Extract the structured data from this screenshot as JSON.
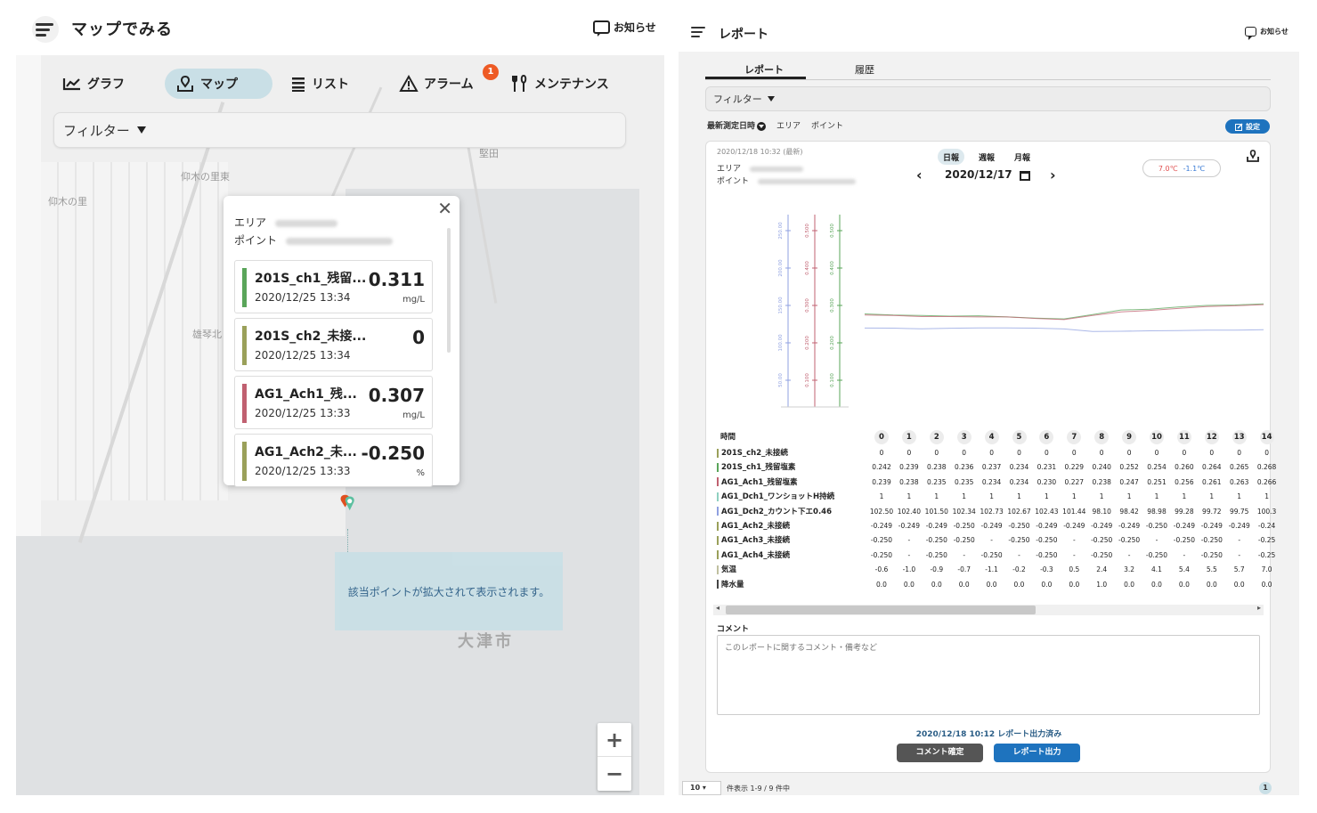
{
  "left": {
    "title": "マップでみる",
    "notice_label": "お知らせ",
    "tabs": [
      {
        "label": "グラフ",
        "icon": "chart-line-icon"
      },
      {
        "label": "マップ",
        "icon": "map-pin-icon",
        "active": true
      },
      {
        "label": "リスト",
        "icon": "list-icon"
      },
      {
        "label": "アラーム",
        "icon": "warning-icon",
        "badge": "1"
      },
      {
        "label": "メンテナンス",
        "icon": "tools-icon"
      }
    ],
    "filter_label": "フィルター",
    "map_labels": [
      "仰木の里東",
      "仰木の里",
      "堅田",
      "雄琴北"
    ],
    "city_label": "大津市",
    "popup": {
      "area_label": "エリア",
      "point_label": "ポイント",
      "cards": [
        {
          "name": "201S_ch1_残留...",
          "time": "2020/12/25 13:34",
          "value": "0.311",
          "unit": "mg/L",
          "color": "#5aa55a"
        },
        {
          "name": "201S_ch2_未接...",
          "time": "2020/12/25 13:34",
          "value": "0",
          "unit": "",
          "color": "#9aa05a"
        },
        {
          "name": "AG1_Ach1_残...",
          "time": "2020/12/25 13:33",
          "value": "0.307",
          "unit": "mg/L",
          "color": "#c06070"
        },
        {
          "name": "AG1_Ach2_未...",
          "time": "2020/12/25 13:33",
          "value": "-0.250",
          "unit": "%",
          "color": "#9aa05a"
        }
      ]
    },
    "callout": "該当ポイントが拡大されて表示されます。",
    "zoom_in": "+",
    "zoom_out": "−"
  },
  "right": {
    "title": "レポート",
    "notice_label": "お知らせ",
    "tabs": [
      "レポート",
      "履歴"
    ],
    "filter_label": "フィルター",
    "sub_filters": [
      "最新測定日時",
      "エリア",
      "ポイント"
    ],
    "setting_label": "設定",
    "stamp": "2020/12/18 10:32 (最新)",
    "area_label": "エリア",
    "point_label": "ポイント",
    "periods": [
      {
        "label": "日報",
        "active": true
      },
      {
        "label": "週報"
      },
      {
        "label": "月報"
      }
    ],
    "date": "2020/12/17",
    "temp_high": "7.0℃",
    "temp_low": "-1.1℃",
    "table": {
      "time_label": "時間",
      "hours": [
        "0",
        "1",
        "2",
        "3",
        "4",
        "5",
        "6",
        "7",
        "8",
        "9",
        "10",
        "11",
        "12",
        "13",
        "14"
      ],
      "rows": [
        {
          "label": "201S_ch2_未接続",
          "color": "#9aa05a",
          "cells": [
            "0",
            "0",
            "0",
            "0",
            "0",
            "0",
            "0",
            "0",
            "0",
            "0",
            "0",
            "0",
            "0",
            "0",
            "0"
          ]
        },
        {
          "label": "201S_ch1_残留塩素",
          "color": "#5aa55a",
          "cells": [
            "0.242",
            "0.239",
            "0.238",
            "0.236",
            "0.237",
            "0.234",
            "0.231",
            "0.229",
            "0.240",
            "0.252",
            "0.254",
            "0.260",
            "0.264",
            "0.265",
            "0.268"
          ]
        },
        {
          "label": "AG1_Ach1_残留塩素",
          "color": "#c06070",
          "cells": [
            "0.239",
            "0.238",
            "0.235",
            "0.235",
            "0.234",
            "0.234",
            "0.230",
            "0.227",
            "0.238",
            "0.247",
            "0.251",
            "0.256",
            "0.261",
            "0.263",
            "0.266"
          ]
        },
        {
          "label": "AG1_Dch1_ワンショットH持続",
          "color": "#8fd0c0",
          "cells": [
            "1",
            "1",
            "1",
            "1",
            "1",
            "1",
            "1",
            "1",
            "1",
            "1",
            "1",
            "1",
            "1",
            "1",
            "1"
          ]
        },
        {
          "label": "AG1_Dch2_カウント下エ0.46",
          "color": "#8fa0e0",
          "cells": [
            "102.50",
            "102.40",
            "101.50",
            "102.34",
            "102.73",
            "102.67",
            "102.43",
            "101.44",
            "98.10",
            "98.42",
            "98.98",
            "99.28",
            "99.72",
            "99.75",
            "100.3"
          ]
        },
        {
          "label": "AG1_Ach2_未接続",
          "color": "#9aa05a",
          "cells": [
            "-0.249",
            "-0.249",
            "-0.249",
            "-0.250",
            "-0.249",
            "-0.250",
            "-0.249",
            "-0.249",
            "-0.249",
            "-0.249",
            "-0.250",
            "-0.249",
            "-0.249",
            "-0.249",
            "-0.24"
          ]
        },
        {
          "label": "AG1_Ach3_未接続",
          "color": "#9aa05a",
          "cells": [
            "-0.250",
            "-",
            "-0.250",
            "-0.250",
            "-",
            "-0.250",
            "-0.250",
            "-",
            "-0.250",
            "-0.250",
            "-",
            "-0.250",
            "-0.250",
            "-",
            "-0.25"
          ]
        },
        {
          "label": "AG1_Ach4_未接続",
          "color": "#9aa05a",
          "cells": [
            "-0.250",
            "-",
            "-0.250",
            "-",
            "-0.250",
            "-",
            "-0.250",
            "-",
            "-0.250",
            "-",
            "-0.250",
            "-",
            "-0.250",
            "-",
            "-0.25"
          ]
        },
        {
          "label": "気温",
          "color": "#c0c0a0",
          "cells": [
            "-0.6",
            "-1.0",
            "-0.9",
            "-0.7",
            "-1.1",
            "-0.2",
            "-0.3",
            "0.5",
            "2.4",
            "3.2",
            "4.1",
            "5.4",
            "5.5",
            "5.7",
            "7.0"
          ]
        },
        {
          "label": "降水量",
          "color": "#444444",
          "cells": [
            "0.0",
            "0.0",
            "0.0",
            "0.0",
            "0.0",
            "0.0",
            "0.0",
            "0.0",
            "1.0",
            "0.0",
            "0.0",
            "0.0",
            "0.0",
            "0.0",
            "0.0"
          ]
        }
      ]
    },
    "comment_label": "コメント",
    "comment_placeholder": "このレポートに関するコメント・備考など",
    "status": "2020/12/18 10:12 レポート出力済み",
    "btn_confirm": "コメント確定",
    "btn_export": "レポート出力",
    "pager": {
      "per_page": "10",
      "text": "件表示 1-9 / 9 件中",
      "page": "1"
    }
  },
  "chart_data": {
    "type": "line",
    "x": [
      "0",
      "1",
      "2",
      "3",
      "4",
      "5",
      "6",
      "7",
      "8",
      "9",
      "10",
      "11",
      "12",
      "13",
      "14"
    ],
    "series": [
      {
        "values": [
          0.242,
          0.239,
          0.238,
          0.236,
          0.237,
          0.234,
          0.231,
          0.229,
          0.24,
          0.252,
          0.254,
          0.26,
          0.264,
          0.265,
          0.268
        ],
        "color": "#5aa55a"
      },
      {
        "values": [
          0.239,
          0.238,
          0.235,
          0.235,
          0.234,
          0.234,
          0.23,
          0.227,
          0.238,
          0.247,
          0.251,
          0.256,
          0.261,
          0.263,
          0.266
        ],
        "color": "#c06070"
      },
      {
        "values": [
          102.5,
          102.4,
          101.5,
          102.34,
          102.73,
          102.67,
          102.43,
          101.44,
          98.1,
          98.42,
          98.98,
          99.28,
          99.72,
          99.75,
          100.3
        ],
        "color": "#8fa0e0"
      }
    ],
    "axes": [
      {
        "color": "#8fa0e0",
        "ticks": [
          "250.00",
          "200.00",
          "150.00",
          "100.00",
          "50.00"
        ],
        "ylim": [
          0,
          250
        ]
      },
      {
        "color": "#c06070",
        "ticks": [
          "0.500",
          "0.400",
          "0.300",
          "0.200",
          "0.100"
        ],
        "ylim": [
          0,
          0.5
        ]
      },
      {
        "color": "#5aa55a",
        "ticks": [
          "0.500",
          "0.400",
          "0.300",
          "0.200",
          "0.100"
        ],
        "ylim": [
          0,
          0.5
        ]
      }
    ]
  }
}
